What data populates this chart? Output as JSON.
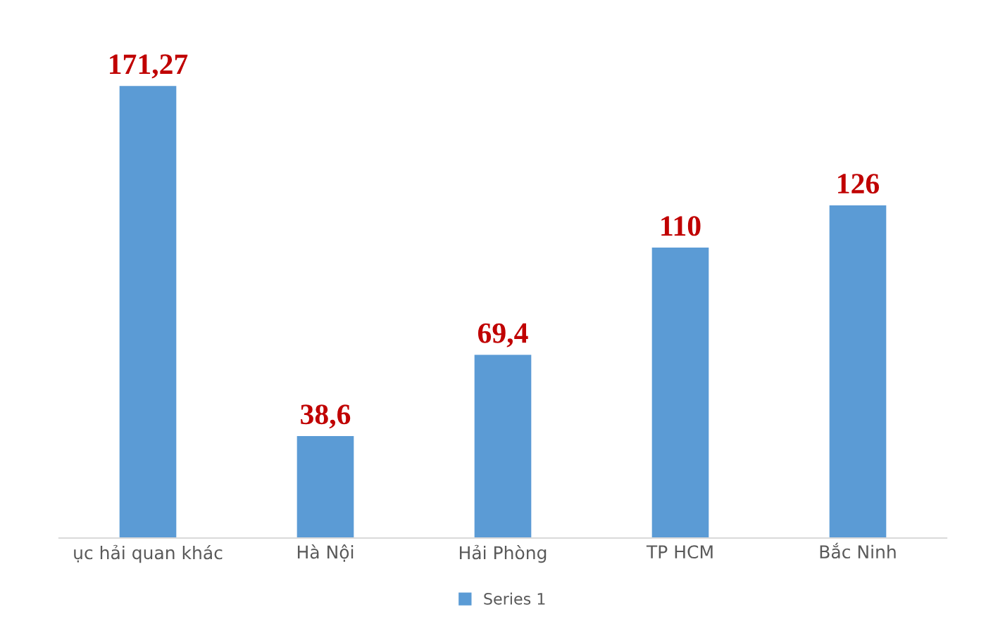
{
  "chart_data": {
    "type": "bar",
    "categories": [
      "ục hải quan khác",
      "Hà Nội",
      "Hải Phòng",
      "TP HCM",
      "Bắc Ninh"
    ],
    "series": [
      {
        "name": "Series 1",
        "color": "#5b9bd5",
        "values": [
          171.27,
          38.6,
          69.4,
          110,
          126
        ],
        "value_labels": [
          "171,27",
          "38,6",
          "69,4",
          "110",
          "126"
        ]
      }
    ],
    "legend": "bottom",
    "grid": false
  }
}
